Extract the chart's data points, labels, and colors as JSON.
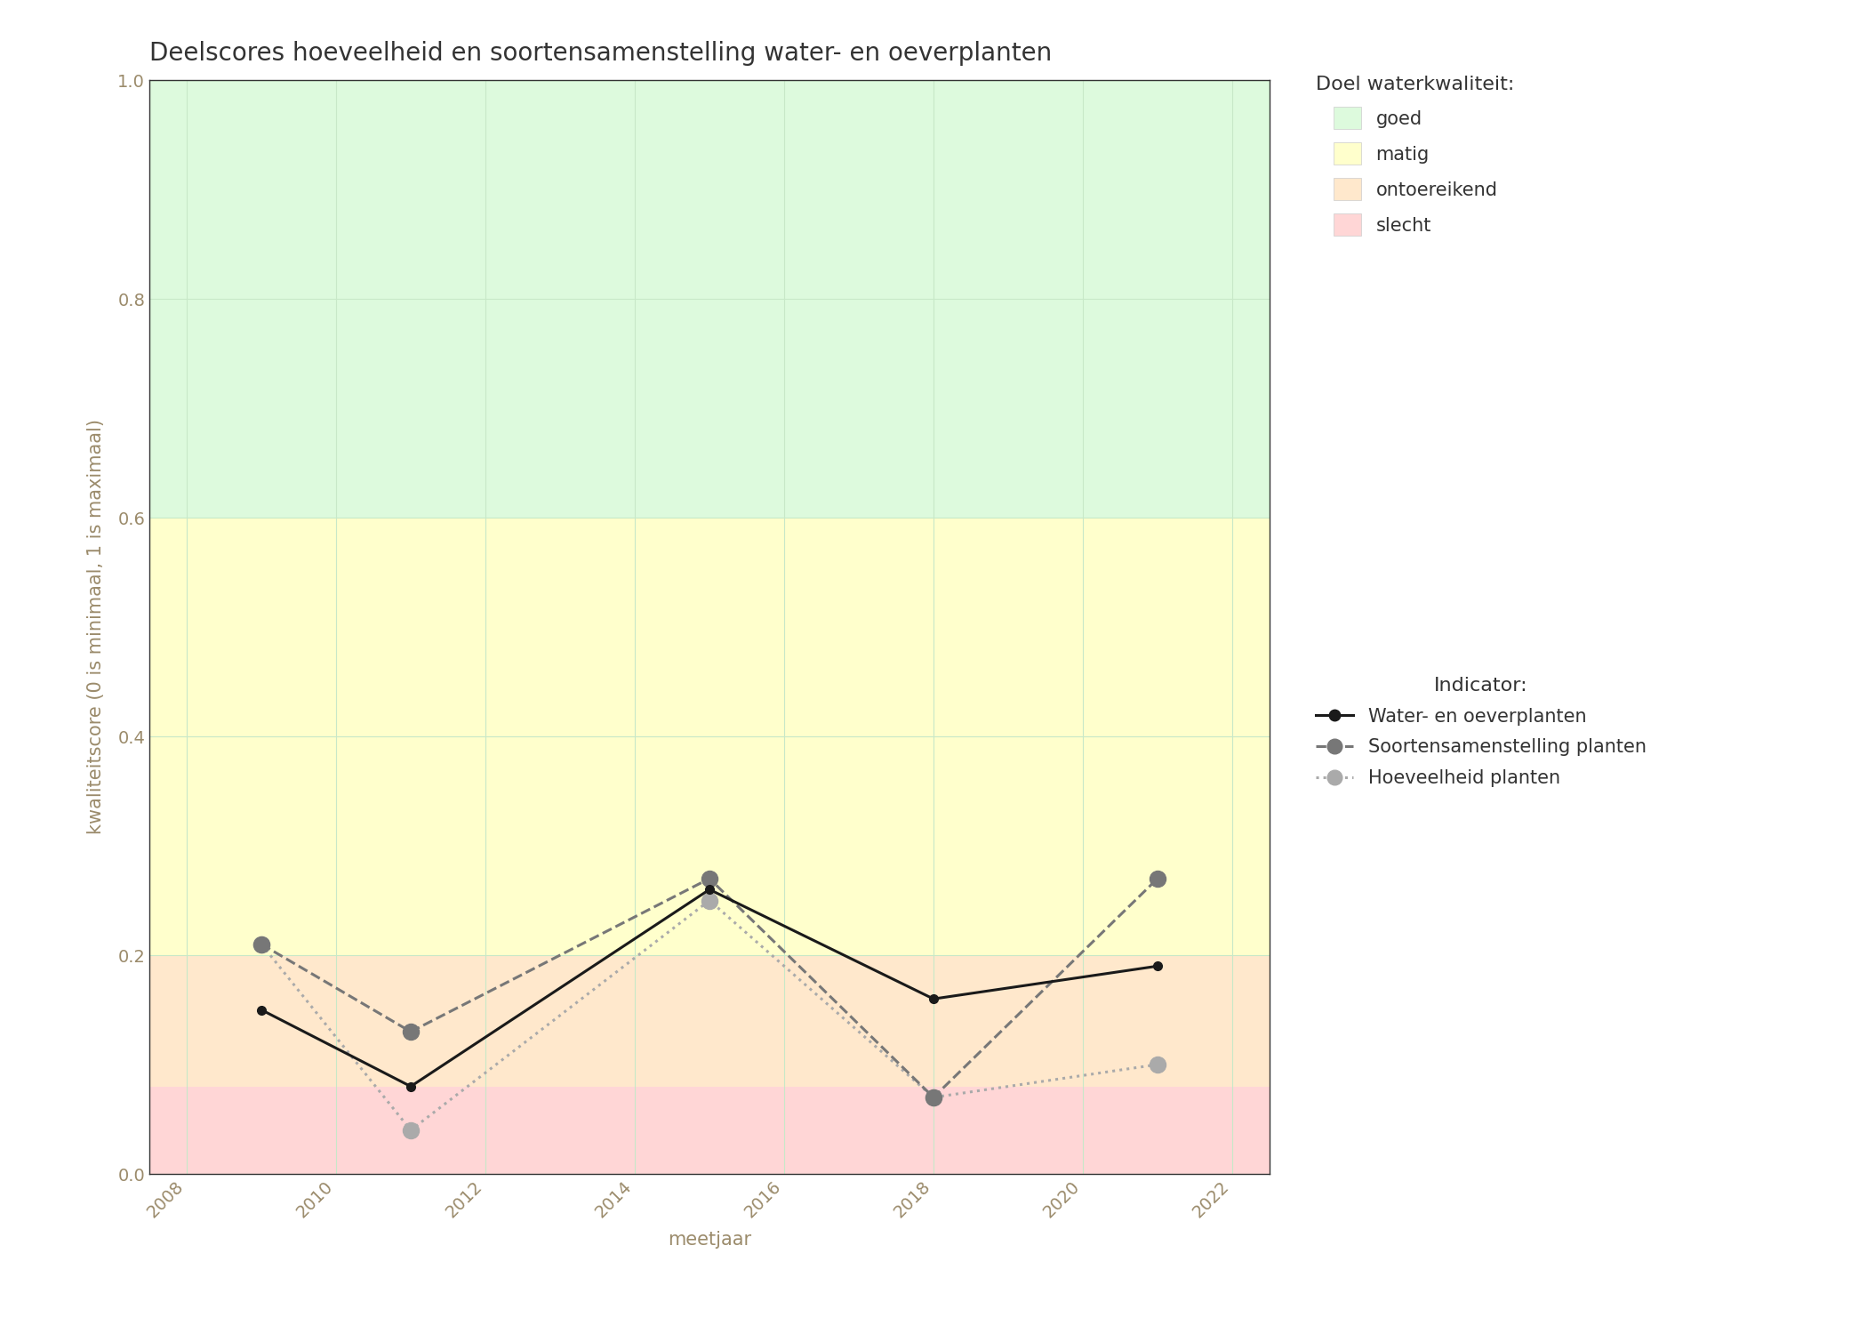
{
  "title": "Deelscores hoeveelheid en soortensamenstelling water- en oeverplanten",
  "xlabel": "meetjaar",
  "ylabel": "kwaliteitscore (0 is minimaal, 1 is maximaal)",
  "xlim": [
    2007.5,
    2022.5
  ],
  "ylim": [
    0.0,
    1.0
  ],
  "xticks": [
    2008,
    2010,
    2012,
    2014,
    2016,
    2018,
    2020,
    2022
  ],
  "yticks": [
    0.0,
    0.2,
    0.4,
    0.6,
    0.8,
    1.0
  ],
  "bg_bands": [
    {
      "ymin": 0.0,
      "ymax": 0.08,
      "color": "#FFD6D6",
      "label": "slecht"
    },
    {
      "ymin": 0.08,
      "ymax": 0.2,
      "color": "#FFE8CC",
      "label": "ontoereikend"
    },
    {
      "ymin": 0.2,
      "ymax": 0.6,
      "color": "#FFFFCC",
      "label": "matig"
    },
    {
      "ymin": 0.6,
      "ymax": 1.0,
      "color": "#DDFADD",
      "label": "goed"
    }
  ],
  "series": [
    {
      "name": "Water- en oeverplanten",
      "years": [
        2009,
        2011,
        2015,
        2018,
        2021
      ],
      "values": [
        0.15,
        0.08,
        0.26,
        0.16,
        0.19
      ],
      "color": "#1a1a1a",
      "linestyle": "solid",
      "linewidth": 2.2,
      "marker": "o",
      "markersize": 7,
      "zorder": 5
    },
    {
      "name": "Soortensamenstelling planten",
      "years": [
        2009,
        2011,
        2015,
        2018,
        2021
      ],
      "values": [
        0.21,
        0.13,
        0.27,
        0.07,
        0.27
      ],
      "color": "#777777",
      "linestyle": "dashed",
      "linewidth": 2.2,
      "marker": "o",
      "markersize": 13,
      "zorder": 4
    },
    {
      "name": "Hoeveelheid planten",
      "years": [
        2009,
        2011,
        2015,
        2018,
        2021
      ],
      "values": [
        0.21,
        0.04,
        0.25,
        0.07,
        0.1
      ],
      "color": "#aaaaaa",
      "linestyle": "dotted",
      "linewidth": 2.2,
      "marker": "o",
      "markersize": 13,
      "zorder": 3
    }
  ],
  "legend_title_quality": "Doel waterkwaliteit:",
  "legend_title_indicator": "Indicator:",
  "fig_bg_color": "#ffffff",
  "grid_color": "#c8e8c8",
  "title_fontsize": 20,
  "label_fontsize": 15,
  "tick_fontsize": 14,
  "legend_fontsize": 15,
  "legend_title_fontsize": 16
}
